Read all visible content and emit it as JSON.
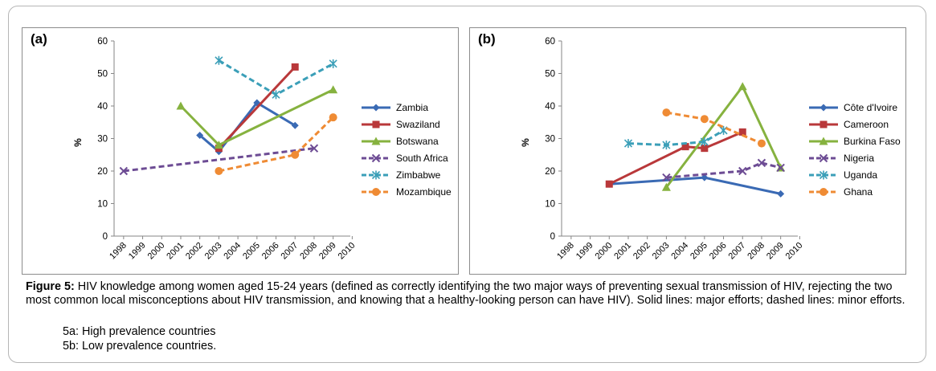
{
  "figure": {
    "label": "Figure 5:",
    "text": " HIV knowledge among women aged 15-24 years (defined as correctly identifying the two major ways of preventing sexual transmission of HIV, rejecting the two most common local misconceptions about HIV transmission, and knowing that a healthy-looking person can have HIV). Solid lines: major efforts; dashed lines: minor efforts.",
    "sub_a": "5a: High prevalence countries",
    "sub_b": "5b: Low prevalence countries."
  },
  "colors": {
    "blue": "#3a6ab4",
    "red": "#b9383a",
    "green": "#86b23f",
    "purple": "#6d4c94",
    "teal": "#3b9fb8",
    "orange": "#ef8b34"
  },
  "chart_data": [
    {
      "panel_label": "(a)",
      "type": "line",
      "title": "High prevalence countries",
      "xlabel": "",
      "ylabel": "%",
      "ylim": [
        0,
        60
      ],
      "yticks": [
        0,
        10,
        20,
        30,
        40,
        50,
        60
      ],
      "x": [
        "1998",
        "1999",
        "2000",
        "2001",
        "2002",
        "2003",
        "2004",
        "2005",
        "2006",
        "2007",
        "2008",
        "2009",
        "2010"
      ],
      "legend_position": "right",
      "series": [
        {
          "name": "Zambia",
          "color": "#3a6ab4",
          "marker": "diamond",
          "dashed": false,
          "points": [
            [
              2002,
              31
            ],
            [
              2003,
              26
            ],
            [
              2005,
              41
            ],
            [
              2007,
              34
            ]
          ]
        },
        {
          "name": "Swaziland",
          "color": "#b9383a",
          "marker": "square",
          "dashed": false,
          "points": [
            [
              2003,
              27
            ],
            [
              2007,
              52
            ]
          ]
        },
        {
          "name": "Botswana",
          "color": "#86b23f",
          "marker": "triangle",
          "dashed": false,
          "points": [
            [
              2001,
              40
            ],
            [
              2003,
              28
            ],
            [
              2009,
              45
            ]
          ]
        },
        {
          "name": "South Africa",
          "color": "#6d4c94",
          "marker": "x",
          "dashed": true,
          "points": [
            [
              1998,
              20
            ],
            [
              2008,
              27
            ]
          ]
        },
        {
          "name": "Zimbabwe",
          "color": "#3b9fb8",
          "marker": "star",
          "dashed": true,
          "points": [
            [
              2003,
              54
            ],
            [
              2006,
              43.5
            ],
            [
              2009,
              53
            ]
          ]
        },
        {
          "name": "Mozambique",
          "color": "#ef8b34",
          "marker": "circle",
          "dashed": true,
          "points": [
            [
              2003,
              20
            ],
            [
              2007,
              25
            ],
            [
              2009,
              36.5
            ]
          ]
        }
      ]
    },
    {
      "panel_label": "(b)",
      "type": "line",
      "title": "Low prevalence countries",
      "xlabel": "",
      "ylabel": "%",
      "ylim": [
        0,
        60
      ],
      "yticks": [
        0,
        10,
        20,
        30,
        40,
        50,
        60
      ],
      "x": [
        "1998",
        "1999",
        "2000",
        "2001",
        "2002",
        "2003",
        "2004",
        "2005",
        "2006",
        "2007",
        "2008",
        "2009",
        "2010"
      ],
      "legend_position": "right",
      "series": [
        {
          "name": "Côte d'Ivoire",
          "color": "#3a6ab4",
          "marker": "diamond",
          "dashed": false,
          "points": [
            [
              2000,
              16
            ],
            [
              2005,
              18
            ],
            [
              2009,
              13
            ]
          ]
        },
        {
          "name": "Cameroon",
          "color": "#b9383a",
          "marker": "square",
          "dashed": false,
          "points": [
            [
              2000,
              16
            ],
            [
              2004,
              27.5
            ],
            [
              2005,
              27
            ],
            [
              2007,
              32
            ]
          ]
        },
        {
          "name": "Burkina Faso",
          "color": "#86b23f",
          "marker": "triangle",
          "dashed": false,
          "points": [
            [
              2003,
              15
            ],
            [
              2007,
              46
            ],
            [
              2009,
              21
            ]
          ]
        },
        {
          "name": "Nigeria",
          "color": "#6d4c94",
          "marker": "x",
          "dashed": true,
          "points": [
            [
              2003,
              18
            ],
            [
              2007,
              20
            ],
            [
              2008,
              22.5
            ],
            [
              2009,
              21
            ]
          ]
        },
        {
          "name": "Uganda",
          "color": "#3b9fb8",
          "marker": "star",
          "dashed": true,
          "points": [
            [
              2001,
              28.5
            ],
            [
              2003,
              28
            ],
            [
              2005,
              29
            ],
            [
              2006,
              32.5
            ]
          ]
        },
        {
          "name": "Ghana",
          "color": "#ef8b34",
          "marker": "circle",
          "dashed": true,
          "points": [
            [
              2003,
              38
            ],
            [
              2005,
              36
            ],
            [
              2008,
              28.5
            ]
          ]
        }
      ]
    }
  ]
}
